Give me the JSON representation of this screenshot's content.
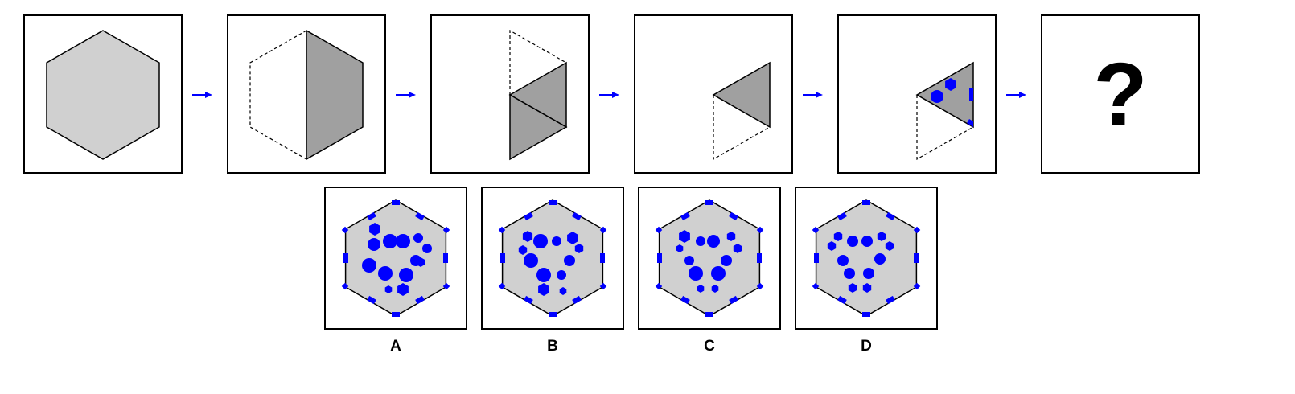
{
  "puzzle": {
    "question_mark": "?",
    "options": [
      {
        "label": "A"
      },
      {
        "label": "B"
      },
      {
        "label": "C"
      },
      {
        "label": "D"
      }
    ]
  },
  "colors": {
    "light_fill": "#d0d0d0",
    "dark_fill": "#a0a0a0",
    "marker": "#0000ff",
    "arrow": "#0000ff"
  }
}
